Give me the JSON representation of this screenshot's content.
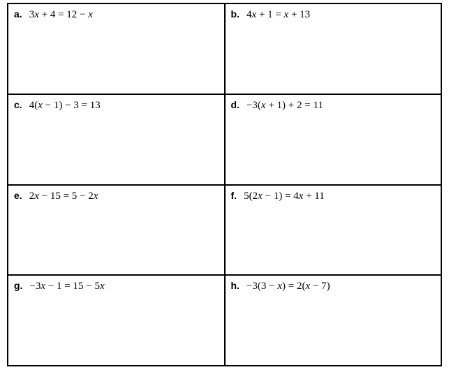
{
  "grid": {
    "rows": 4,
    "cols": 2,
    "border_color": "#000000",
    "background_color": "#ffffff",
    "label_font": "Arial",
    "label_fontsize": 14,
    "label_weight": "bold",
    "equation_font": "Cambria Math",
    "equation_fontsize": 15,
    "cells": [
      {
        "label": "a.",
        "equation": "3x + 4 = 12 − x"
      },
      {
        "label": "b.",
        "equation": "4x + 1 = x + 13"
      },
      {
        "label": "c.",
        "equation": "4(x − 1) − 3 = 13"
      },
      {
        "label": "d.",
        "equation": "−3(x + 1) + 2 = 11"
      },
      {
        "label": "e.",
        "equation": "2x − 15 = 5 − 2x"
      },
      {
        "label": "f.",
        "equation": "5(2x − 1) = 4x + 11"
      },
      {
        "label": "g.",
        "equation": "−3x − 1 = 15 − 5x"
      },
      {
        "label": "h.",
        "equation": "−3(3 − x) = 2(x − 7)"
      }
    ]
  }
}
